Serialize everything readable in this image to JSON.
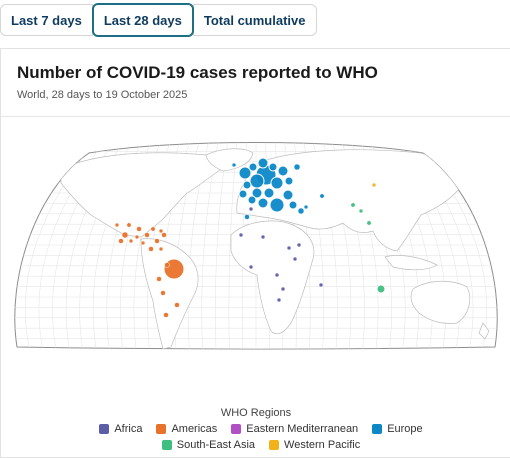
{
  "tabs": [
    {
      "label": "Last 7 days",
      "active": false
    },
    {
      "label": "Last 28 days",
      "active": true
    },
    {
      "label": "Total cumulative",
      "active": false
    }
  ],
  "chart": {
    "title": "Number of COVID-19 cases reported to WHO",
    "subtitle": "World, 28 days to 19 October 2025"
  },
  "legend": {
    "title": "WHO Regions",
    "items": [
      {
        "name": "Africa",
        "color": "#5b5ea6"
      },
      {
        "name": "Americas",
        "color": "#e8722a"
      },
      {
        "name": "Eastern Mediterranean",
        "color": "#b14fc5"
      },
      {
        "name": "Europe",
        "color": "#0c88c7"
      },
      {
        "name": "South-East Asia",
        "color": "#3fbf7f"
      },
      {
        "name": "Western Pacific",
        "color": "#f2b21a"
      }
    ]
  }
}
